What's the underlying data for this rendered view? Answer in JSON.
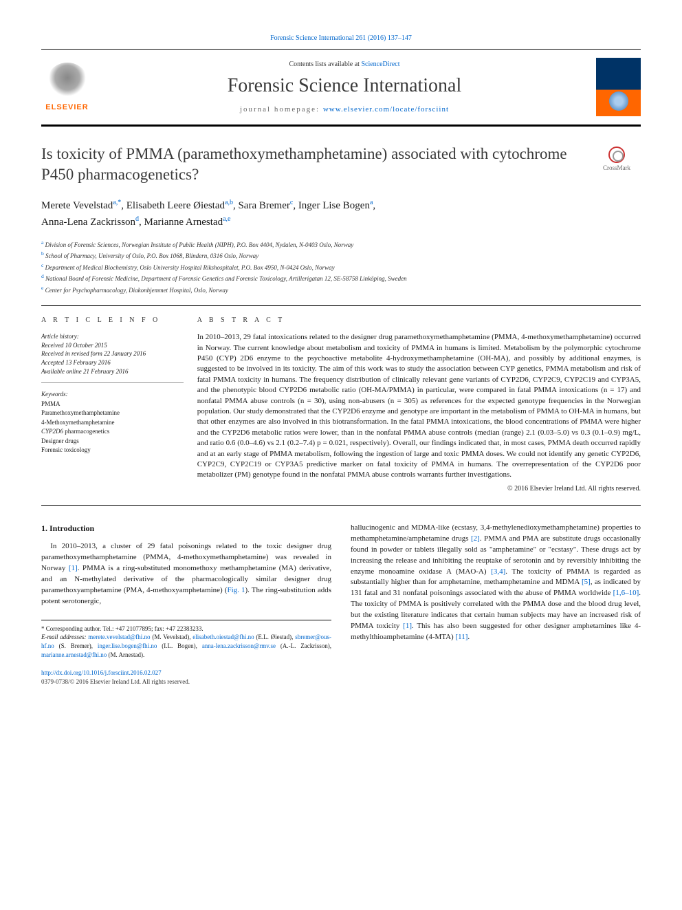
{
  "header": {
    "top_link": "Forensic Science International 261 (2016) 137–147",
    "contents_prefix": "Contents lists available at ",
    "contents_link": "ScienceDirect",
    "journal_name": "Forensic Science International",
    "homepage_prefix": "journal homepage: ",
    "homepage_url": "www.elsevier.com/locate/forsciint",
    "publisher_logo_text": "ELSEVIER"
  },
  "crossmark_label": "CrossMark",
  "article": {
    "title": "Is toxicity of PMMA (paramethoxymethamphetamine) associated with cytochrome P450 pharmacogenetics?"
  },
  "authors": [
    {
      "name": "Merete Vevelstad",
      "sup": "a,*"
    },
    {
      "name": "Elisabeth Leere Øiestad",
      "sup": "a,b"
    },
    {
      "name": "Sara Bremer",
      "sup": "c"
    },
    {
      "name": "Inger Lise Bogen",
      "sup": "a"
    },
    {
      "name": "Anna-Lena Zackrisson",
      "sup": "d"
    },
    {
      "name": "Marianne Arnestad",
      "sup": "a,e"
    }
  ],
  "affiliations": {
    "a": "Division of Forensic Sciences, Norwegian Institute of Public Health (NIPH), P.O. Box 4404, Nydalen, N-0403 Oslo, Norway",
    "b": "School of Pharmacy, University of Oslo, P.O. Box 1068, Blindern, 0316 Oslo, Norway",
    "c": "Department of Medical Biochemistry, Oslo University Hospital Rikshospitalet, P.O. Box 4950, N-0424 Oslo, Norway",
    "d": "National Board of Forensic Medicine, Department of Forensic Genetics and Forensic Toxicology, Artillerigatan 12, SE-58758 Linköping, Sweden",
    "e": "Center for Psychopharmacology, Diakonhjemmet Hospital, Oslo, Norway"
  },
  "article_info": {
    "label": "A R T I C L E   I N F O",
    "history_head": "Article history:",
    "history": [
      "Received 10 October 2015",
      "Received in revised form 22 January 2016",
      "Accepted 13 February 2016",
      "Available online 21 February 2016"
    ],
    "keywords_head": "Keywords:",
    "keywords": [
      "PMMA",
      "Paramethoxymethamphetamine",
      "4-Methoxymethamphetamine",
      "CYP2D6 pharmacogenetics",
      "Designer drugs",
      "Forensic toxicology"
    ]
  },
  "abstract": {
    "label": "A B S T R A C T",
    "text": "In 2010–2013, 29 fatal intoxications related to the designer drug paramethoxymethamphetamine (PMMA, 4-methoxymethamphetamine) occurred in Norway. The current knowledge about metabolism and toxicity of PMMA in humans is limited. Metabolism by the polymorphic cytochrome P450 (CYP) 2D6 enzyme to the psychoactive metabolite 4-hydroxymethamphetamine (OH-MA), and possibly by additional enzymes, is suggested to be involved in its toxicity. The aim of this work was to study the association between CYP genetics, PMMA metabolism and risk of fatal PMMA toxicity in humans. The frequency distribution of clinically relevant gene variants of CYP2D6, CYP2C9, CYP2C19 and CYP3A5, and the phenotypic blood CYP2D6 metabolic ratio (OH-MA/PMMA) in particular, were compared in fatal PMMA intoxications (n = 17) and nonfatal PMMA abuse controls (n = 30), using non-abusers (n = 305) as references for the expected genotype frequencies in the Norwegian population. Our study demonstrated that the CYP2D6 enzyme and genotype are important in the metabolism of PMMA to OH-MA in humans, but that other enzymes are also involved in this biotransformation. In the fatal PMMA intoxications, the blood concentrations of PMMA were higher and the CYP2D6 metabolic ratios were lower, than in the nonfatal PMMA abuse controls (median (range) 2.1 (0.03–5.0) vs 0.3 (0.1–0.9) mg/L, and ratio 0.6 (0.0–4.6) vs 2.1 (0.2–7.4) p = 0.021, respectively). Overall, our findings indicated that, in most cases, PMMA death occurred rapidly and at an early stage of PMMA metabolism, following the ingestion of large and toxic PMMA doses. We could not identify any genetic CYP2D6, CYP2C9, CYP2C19 or CYP3A5 predictive marker on fatal toxicity of PMMA in humans. The overrepresentation of the CYP2D6 poor metabolizer (PM) genotype found in the nonfatal PMMA abuse controls warrants further investigations.",
    "copyright": "© 2016 Elsevier Ireland Ltd. All rights reserved."
  },
  "body": {
    "section_heading": "1. Introduction",
    "col_left_p1_a": "In 2010–2013, a cluster of 29 fatal poisonings related to the toxic designer drug paramethoxymethamphetamine (PMMA, 4-methoxymethamphetamine) was revealed in Norway ",
    "ref1": "[1]",
    "col_left_p1_b": ". PMMA is a ring-substituted monomethoxy methamphetamine (MA) derivative, and an N-methylated derivative of the pharmacologically similar designer drug paramethoxyamphetamine (PMA, 4-methoxyamphetamine) (",
    "fig1": "Fig. 1",
    "col_left_p1_c": "). The ring-substitution adds potent serotonergic,",
    "col_right_a": "hallucinogenic and MDMA-like (ecstasy, 3,4-methylenedioxymethamphetamine) properties to methamphetamine/amphetamine drugs ",
    "ref2": "[2]",
    "col_right_b": ". PMMA and PMA are substitute drugs occasionally found in powder or tablets illegally sold as \"amphetamine\" or \"ecstasy\". These drugs act by increasing the release and inhibiting the reuptake of serotonin and by reversibly inhibiting the enzyme monoamine oxidase A (MAO-A) ",
    "ref34": "[3,4]",
    "col_right_c": ". The toxicity of PMMA is regarded as substantially higher than for amphetamine, methamphetamine and MDMA ",
    "ref5": "[5]",
    "col_right_d": ", as indicated by 131 fatal and 31 nonfatal poisonings associated with the abuse of PMMA worldwide ",
    "ref1610": "[1,6–10]",
    "col_right_e": ". The toxicity of PMMA is positively correlated with the PMMA dose and the blood drug level, but the existing literature indicates that certain human subjects may have an increased risk of PMMA toxicity ",
    "ref1b": "[1]",
    "col_right_f": ". This has also been suggested for other designer amphetamines like 4-methylthioamphetamine (4-MTA) ",
    "ref11": "[11]",
    "col_right_g": "."
  },
  "footnote": {
    "corresponding": "* Corresponding author. Tel.: +47 21077895; fax: +47 22383233.",
    "email_label": "E-mail addresses: ",
    "emails": [
      {
        "addr": "merete.vevelstad@fhi.no",
        "who": " (M. Vevelstad), "
      },
      {
        "addr": "elisabeth.oiestad@fhi.no",
        "who": " (E.L. Øiestad), "
      },
      {
        "addr": "sbremer@ous-hf.no",
        "who": " (S. Bremer), "
      },
      {
        "addr": "inger.lise.bogen@fhi.no",
        "who": " (I.L. Bogen), "
      },
      {
        "addr": "anna-lena.zackrisson@rmv.se",
        "who": " (A.-L. Zackrisson), "
      },
      {
        "addr": "marianne.arnestad@fhi.no",
        "who": " (M. Arnestad)."
      }
    ]
  },
  "doi": {
    "url": "http://dx.doi.org/10.1016/j.forsciint.2016.02.027",
    "issn_copyright": "0379-0738/© 2016 Elsevier Ireland Ltd. All rights reserved."
  },
  "colors": {
    "link": "#0066cc",
    "elsevier_orange": "#ff6600",
    "text": "#1a1a1a",
    "rule": "#000000"
  }
}
